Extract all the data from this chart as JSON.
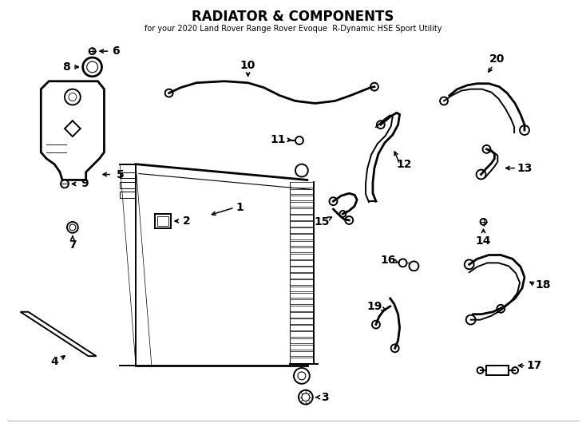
{
  "title": "RADIATOR & COMPONENTS",
  "subtitle": "for your 2020 Land Rover Range Rover Evoque  R-Dynamic HSE Sport Utility",
  "background_color": "#ffffff",
  "line_color": "#000000",
  "fig_width": 7.34,
  "fig_height": 5.4,
  "dpi": 100
}
